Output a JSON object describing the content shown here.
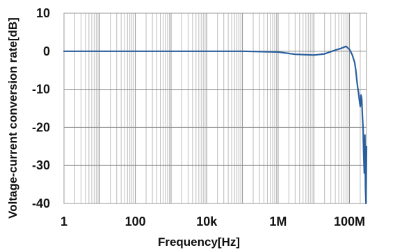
{
  "chart_data": {
    "type": "line",
    "title": "",
    "xlabel": "Frequency[Hz]",
    "ylabel": "Voltage-current conversion rate[dB]",
    "x_scale": "log",
    "xlim": [
      1,
      300000000
    ],
    "ylim": [
      -40,
      10
    ],
    "x_ticks": [
      {
        "value": 1,
        "label": "1"
      },
      {
        "value": 100,
        "label": "100"
      },
      {
        "value": 10000,
        "label": "10k"
      },
      {
        "value": 1000000,
        "label": "1M"
      },
      {
        "value": 100000000,
        "label": "100M"
      }
    ],
    "y_ticks": [
      {
        "value": 10,
        "label": "10"
      },
      {
        "value": 0,
        "label": "0"
      },
      {
        "value": -10,
        "label": "-10"
      },
      {
        "value": -20,
        "label": "-20"
      },
      {
        "value": -30,
        "label": "-30"
      },
      {
        "value": -40,
        "label": "-40"
      }
    ],
    "grid": true,
    "line_color": "#2a5f9e",
    "series": [
      {
        "x": [
          1,
          10,
          100,
          1000,
          10000,
          100000,
          1000000,
          3000000,
          10000000,
          20000000,
          40000000,
          60000000,
          80000000,
          100000000,
          120000000,
          140000000,
          150000000,
          160000000,
          170000000,
          180000000,
          190000000,
          200000000,
          210000000,
          220000000,
          230000000,
          240000000,
          250000000,
          260000000,
          270000000,
          280000000,
          290000000,
          300000000
        ],
        "y": [
          0,
          0,
          0,
          0,
          0,
          0,
          -0.2,
          -0.8,
          -1.0,
          -0.7,
          0.3,
          0.8,
          1.3,
          0.5,
          -1.0,
          -3.0,
          -5.0,
          -7.5,
          -9.5,
          -11.0,
          -13.0,
          -14.5,
          -11.5,
          -12.5,
          -17.0,
          -20.0,
          -27.0,
          -32.0,
          -22.0,
          -36.0,
          -40.0,
          -25.0
        ]
      }
    ]
  }
}
